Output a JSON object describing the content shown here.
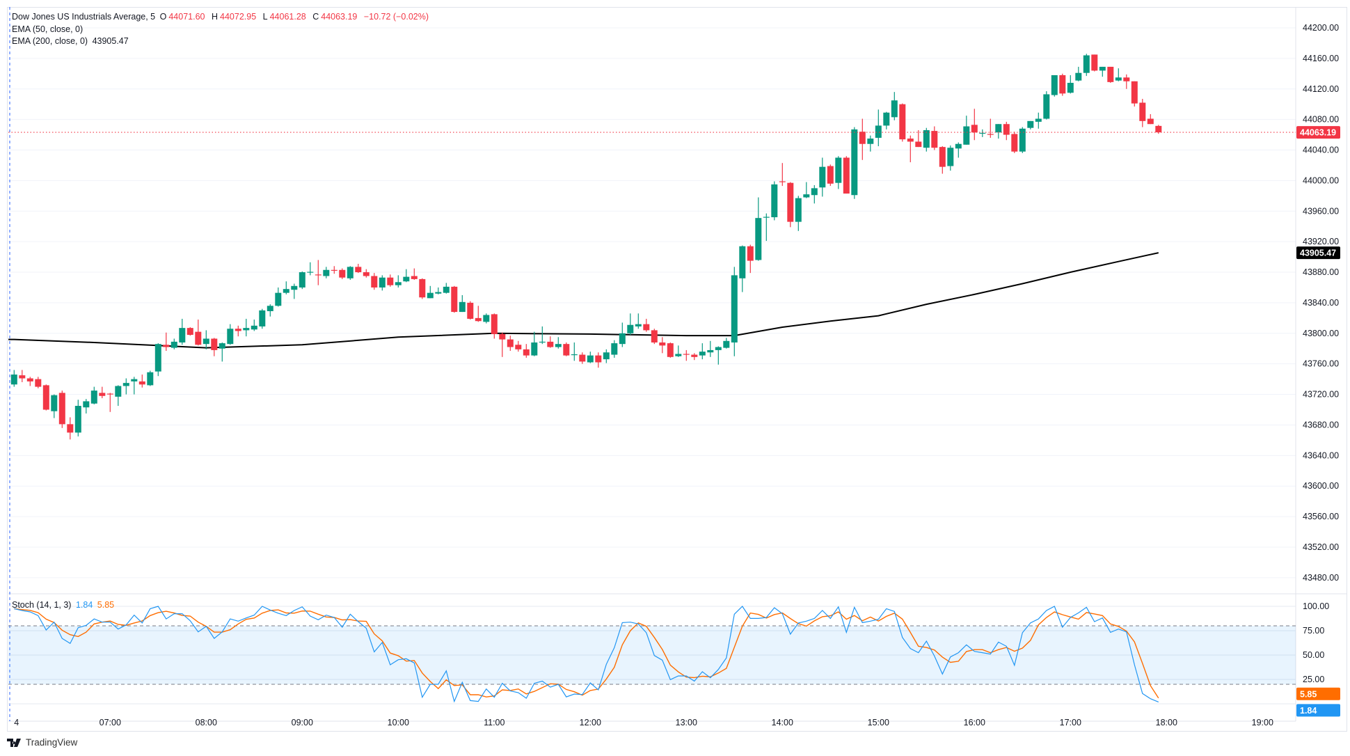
{
  "header": {
    "symbol": "Dow Jones US Industrials Average, 5",
    "open_label": "O",
    "open": "44071.60",
    "high_label": "H",
    "high": "44072.95",
    "low_label": "L",
    "low": "44061.28",
    "close_label": "C",
    "close": "44063.19",
    "change": "−10.72 (−0.02%)",
    "ema50": "EMA (50, close, 0)",
    "ema200": "EMA (200, close, 0)",
    "ema200_value": "43905.47"
  },
  "stoch_legend": {
    "name": "Stoch (14, 1, 3)",
    "k": "1.84",
    "d": "5.85"
  },
  "branding": {
    "logo_text": "TradingView"
  },
  "colors": {
    "up": "#089981",
    "down": "#f23645",
    "k": "#2196f3",
    "d": "#ff6d00",
    "ema": "#000000"
  },
  "chart_data": {
    "type": "candlestick",
    "title": "Dow Jones US Industrials Average, 5",
    "interval_minutes": 5,
    "price_axis": {
      "ticks": [
        "44200.00",
        "44160.00",
        "44120.00",
        "44080.00",
        "44040.00",
        "44000.00",
        "43960.00",
        "43920.00",
        "43880.00",
        "43840.00",
        "43800.00",
        "43760.00",
        "43720.00",
        "43680.00",
        "43640.00",
        "43600.00",
        "43560.00",
        "43520.00",
        "43480.00"
      ],
      "last_price": "44063.19",
      "ema_price": "43905.47"
    },
    "stoch_axis": {
      "ticks": [
        "100.00",
        "75.00",
        "50.00",
        "25.00"
      ],
      "upper_band": 80,
      "lower_band": 20
    },
    "time_axis": {
      "labels": [
        "4",
        "07:00",
        "08:00",
        "09:00",
        "10:00",
        "11:00",
        "12:00",
        "13:00",
        "14:00",
        "15:00",
        "16:00",
        "17:00",
        "18:00",
        "19:00"
      ],
      "bars_per_label": 12
    },
    "candles_ohlc": [
      [
        43733,
        43752,
        43730,
        43746
      ],
      [
        43745,
        43752,
        43736,
        43741
      ],
      [
        43741,
        43743,
        43731,
        43737
      ],
      [
        43740,
        43743,
        43728,
        43730
      ],
      [
        43732,
        43733,
        43699,
        43700
      ],
      [
        43698,
        43720,
        43689,
        43719
      ],
      [
        43722,
        43725,
        43676,
        43681
      ],
      [
        43681,
        43690,
        43661,
        43670
      ],
      [
        43670,
        43713,
        43665,
        43705
      ],
      [
        43703,
        43714,
        43695,
        43711
      ],
      [
        43708,
        43730,
        43707,
        43725
      ],
      [
        43722,
        43730,
        43715,
        43718
      ],
      [
        43721,
        43722,
        43697,
        43720
      ],
      [
        43717,
        43732,
        43705,
        43731
      ],
      [
        43731,
        43741,
        43720,
        43735
      ],
      [
        43737,
        43743,
        43720,
        43740
      ],
      [
        43737,
        43746,
        43729,
        43733
      ],
      [
        43732,
        43751,
        43731,
        43749
      ],
      [
        43750,
        43787,
        43744,
        43786
      ],
      [
        43785,
        43801,
        43777,
        43782
      ],
      [
        43781,
        43793,
        43779,
        43789
      ],
      [
        43788,
        43819,
        43785,
        43807
      ],
      [
        43807,
        43808,
        43797,
        43798
      ],
      [
        43802,
        43818,
        43784,
        43785
      ],
      [
        43786,
        43804,
        43779,
        43793
      ],
      [
        43793,
        43794,
        43770,
        43778
      ],
      [
        43780,
        43788,
        43763,
        43787
      ],
      [
        43786,
        43812,
        43785,
        43806
      ],
      [
        43806,
        43810,
        43796,
        43803
      ],
      [
        43804,
        43819,
        43796,
        43807
      ],
      [
        43805,
        43818,
        43803,
        43810
      ],
      [
        43809,
        43832,
        43806,
        43830
      ],
      [
        43829,
        43838,
        43822,
        43836
      ],
      [
        43836,
        43860,
        43835,
        43853
      ],
      [
        43853,
        43868,
        43851,
        43858
      ],
      [
        43857,
        43865,
        43845,
        43862
      ],
      [
        43860,
        43881,
        43858,
        43880
      ],
      [
        43880,
        43893,
        43876,
        43880.5
      ],
      [
        43877,
        43896,
        43863,
        43876.5
      ],
      [
        43875,
        43887,
        43872,
        43883
      ],
      [
        43883,
        43888,
        43878,
        43882
      ],
      [
        43883,
        43885,
        43871,
        43873
      ],
      [
        43872,
        43888,
        43870,
        43887
      ],
      [
        43887,
        43891,
        43879,
        43880
      ],
      [
        43880,
        43884,
        43873,
        43875
      ],
      [
        43875,
        43879,
        43857,
        43860
      ],
      [
        43860,
        43876,
        43856,
        43873
      ],
      [
        43873,
        43877,
        43861,
        43863
      ],
      [
        43863,
        43876,
        43860,
        43867
      ],
      [
        43868,
        43884,
        43867,
        43874
      ],
      [
        43875,
        43885,
        43870,
        43871
      ],
      [
        43871,
        43872,
        43845,
        43847
      ],
      [
        43846,
        43862,
        43846,
        43853
      ],
      [
        43852,
        43860,
        43851,
        43854
      ],
      [
        43853,
        43866,
        43852,
        43861
      ],
      [
        43861,
        43862,
        43827,
        43828
      ],
      [
        43828,
        43850,
        43828,
        43841
      ],
      [
        43840,
        43842,
        43818,
        43819
      ],
      [
        43820,
        43836,
        43815,
        43816
      ],
      [
        43815,
        43826,
        43813,
        43824
      ],
      [
        43825,
        43826,
        43793,
        43799
      ],
      [
        43799,
        43801,
        43769,
        43792
      ],
      [
        43792,
        43797,
        43777,
        43782
      ],
      [
        43785,
        43790,
        43776,
        43779
      ],
      [
        43779,
        43786,
        43768,
        43771
      ],
      [
        43771,
        43802,
        43770,
        43788
      ],
      [
        43788,
        43809,
        43786,
        43789
      ],
      [
        43789,
        43796,
        43781,
        43782
      ],
      [
        43782,
        43795,
        43780,
        43786
      ],
      [
        43786,
        43788,
        43770,
        43771
      ],
      [
        43772,
        43788,
        43764,
        43772.5
      ],
      [
        43772,
        43775,
        43760,
        43763
      ],
      [
        43762,
        43776,
        43761,
        43771
      ],
      [
        43771,
        43775,
        43755,
        43762
      ],
      [
        43766,
        43779,
        43761,
        43775
      ],
      [
        43772,
        43791,
        43768,
        43787
      ],
      [
        43786,
        43814,
        43782,
        43800
      ],
      [
        43800,
        43826,
        43798,
        43811
      ],
      [
        43809,
        43826,
        43806,
        43812
      ],
      [
        43812,
        43819,
        43802,
        43804
      ],
      [
        43804,
        43806,
        43786,
        43788
      ],
      [
        43788,
        43795,
        43774,
        43784
      ],
      [
        43787,
        43788,
        43768,
        43769
      ],
      [
        43770,
        43784,
        43769,
        43773
      ],
      [
        43773,
        43778,
        43764,
        43772.5
      ],
      [
        43772,
        43774,
        43765,
        43769
      ],
      [
        43771,
        43787,
        43766,
        43776
      ],
      [
        43775,
        43790,
        43769,
        43778
      ],
      [
        43778,
        43783,
        43759,
        43782
      ],
      [
        43781,
        43794,
        43780,
        43790
      ],
      [
        43788,
        43887,
        43770,
        43876
      ],
      [
        43872,
        43915,
        43854,
        43914
      ],
      [
        43914,
        43916,
        43879,
        43895
      ],
      [
        43896,
        43978,
        43895,
        43951
      ],
      [
        43952,
        43957,
        43921,
        43952.5
      ],
      [
        43952,
        43999,
        43948,
        43995
      ],
      [
        43999,
        44023,
        43993,
        43998
      ],
      [
        43997,
        43998,
        43939,
        43946
      ],
      [
        43946,
        43980,
        43934,
        43977
      ],
      [
        43978,
        43998,
        43977,
        43982
      ],
      [
        43981,
        43994,
        43970,
        43990
      ],
      [
        43991,
        44030,
        43979,
        44018
      ],
      [
        44019,
        44021,
        43993,
        43996
      ],
      [
        43997,
        44032,
        43989,
        44030
      ],
      [
        44030,
        44032,
        43983,
        43983
      ],
      [
        43981,
        44070,
        43976,
        44067
      ],
      [
        44064,
        44081,
        44027,
        44048
      ],
      [
        44048,
        44059,
        44038,
        44055
      ],
      [
        44056,
        44093,
        44045,
        44072
      ],
      [
        44072,
        44090,
        44067,
        44089
      ],
      [
        44083,
        44116,
        44079,
        44105
      ],
      [
        44100,
        44101,
        44051,
        44054
      ],
      [
        44055,
        44059,
        44024,
        44051
      ],
      [
        44051,
        44066,
        44044,
        44044
      ],
      [
        44043,
        44069,
        44038,
        44066
      ],
      [
        44065,
        44071,
        44040,
        44043
      ],
      [
        44044,
        44045,
        44009,
        44018
      ],
      [
        44019,
        44046,
        44013,
        44043
      ],
      [
        44042,
        44050,
        44030,
        44048
      ],
      [
        44047,
        44085,
        44047,
        44071
      ],
      [
        44073,
        44094,
        44053,
        44063
      ],
      [
        44062,
        44067,
        44057,
        44062.5
      ],
      [
        44061,
        44081,
        44056,
        44060.5
      ],
      [
        44063,
        44074,
        44055,
        44074
      ],
      [
        44074,
        44077,
        44053,
        44060
      ],
      [
        44061,
        44064,
        44036,
        44038
      ],
      [
        44038,
        44070,
        44036,
        44068
      ],
      [
        44069,
        44078,
        44067,
        44078
      ],
      [
        44077,
        44089,
        44068,
        44081
      ],
      [
        44081,
        44117,
        44080,
        44113
      ],
      [
        44112,
        44138,
        44110,
        44138
      ],
      [
        44138,
        44140,
        44111,
        44114
      ],
      [
        44115,
        44138,
        44114,
        44128
      ],
      [
        44131,
        44149,
        44130,
        44141
      ],
      [
        44141,
        44166,
        44137,
        44164
      ],
      [
        44165,
        44165,
        44143,
        44144
      ],
      [
        44144,
        44149,
        44136,
        44149
      ],
      [
        44149,
        44149,
        44128,
        44129
      ],
      [
        44131,
        44147,
        44130,
        44135
      ],
      [
        44135,
        44139,
        44120,
        44130
      ],
      [
        44130,
        44130,
        44097,
        44101
      ],
      [
        44102,
        44107,
        44070,
        44078
      ],
      [
        44081,
        44087,
        44074,
        44074
      ],
      [
        44071.6,
        44072.95,
        44061.28,
        44063.19
      ]
    ],
    "ema200_points": [
      [
        0,
        43792
      ],
      [
        10,
        43788
      ],
      [
        24,
        43781
      ],
      [
        36,
        43785
      ],
      [
        48,
        43795
      ],
      [
        60,
        43800
      ],
      [
        72,
        43799
      ],
      [
        84,
        43797
      ],
      [
        90,
        43797
      ],
      [
        96,
        43808
      ],
      [
        102,
        43816
      ],
      [
        108,
        43823
      ],
      [
        114,
        43838
      ],
      [
        120,
        43851
      ],
      [
        126,
        43865
      ],
      [
        132,
        43880
      ],
      [
        138,
        43894
      ],
      [
        143,
        43905.47
      ]
    ],
    "stoch_k": [
      97.6,
      95.7,
      94.3,
      90.5,
      75.7,
      83.8,
      67.1,
      61.9,
      78.1,
      80.5,
      87.1,
      83.8,
      83.8,
      76.7,
      81,
      91,
      82.9,
      97.6,
      100,
      87.1,
      92.4,
      92.4,
      85.2,
      73.8,
      79.5,
      67.1,
      73.8,
      87.1,
      84.8,
      88.1,
      91,
      100,
      96.2,
      92.9,
      90.5,
      95.7,
      99.5,
      90,
      86.2,
      91,
      88.6,
      78.6,
      91.9,
      84.3,
      77.6,
      53.3,
      62.9,
      40,
      45.2,
      46.2,
      41.9,
      6.7,
      20,
      20,
      33.8,
      2.4,
      22.1,
      3.3,
      2.4,
      15.2,
      6.7,
      21,
      13.3,
      11.4,
      5.7,
      21,
      23.3,
      17.1,
      20,
      7.1,
      10,
      9.5,
      21.4,
      14.3,
      40.5,
      57.6,
      83.3,
      83.8,
      81.9,
      72.9,
      49.5,
      44.8,
      24.8,
      28.6,
      28.6,
      23.3,
      32.9,
      26.7,
      35.2,
      47.1,
      91.9,
      100,
      87.6,
      87.6,
      88.6,
      98.6,
      92.4,
      71.4,
      82.9,
      84.8,
      87.6,
      95.7,
      87.6,
      99.5,
      73.3,
      99,
      83.3,
      84.8,
      86.7,
      97.6,
      94.8,
      68.1,
      56.7,
      52.4,
      64.3,
      49,
      30.5,
      48.1,
      52.4,
      60.5,
      53.8,
      52.4,
      51,
      63.3,
      59,
      39.5,
      72.9,
      82.9,
      87.1,
      95.7,
      100,
      78.6,
      88.6,
      93.3,
      99,
      84.3,
      88.1,
      73.3,
      76.7,
      73.8,
      40,
      10.5,
      5.2,
      1.84
    ],
    "stoch_d_period": 3
  }
}
